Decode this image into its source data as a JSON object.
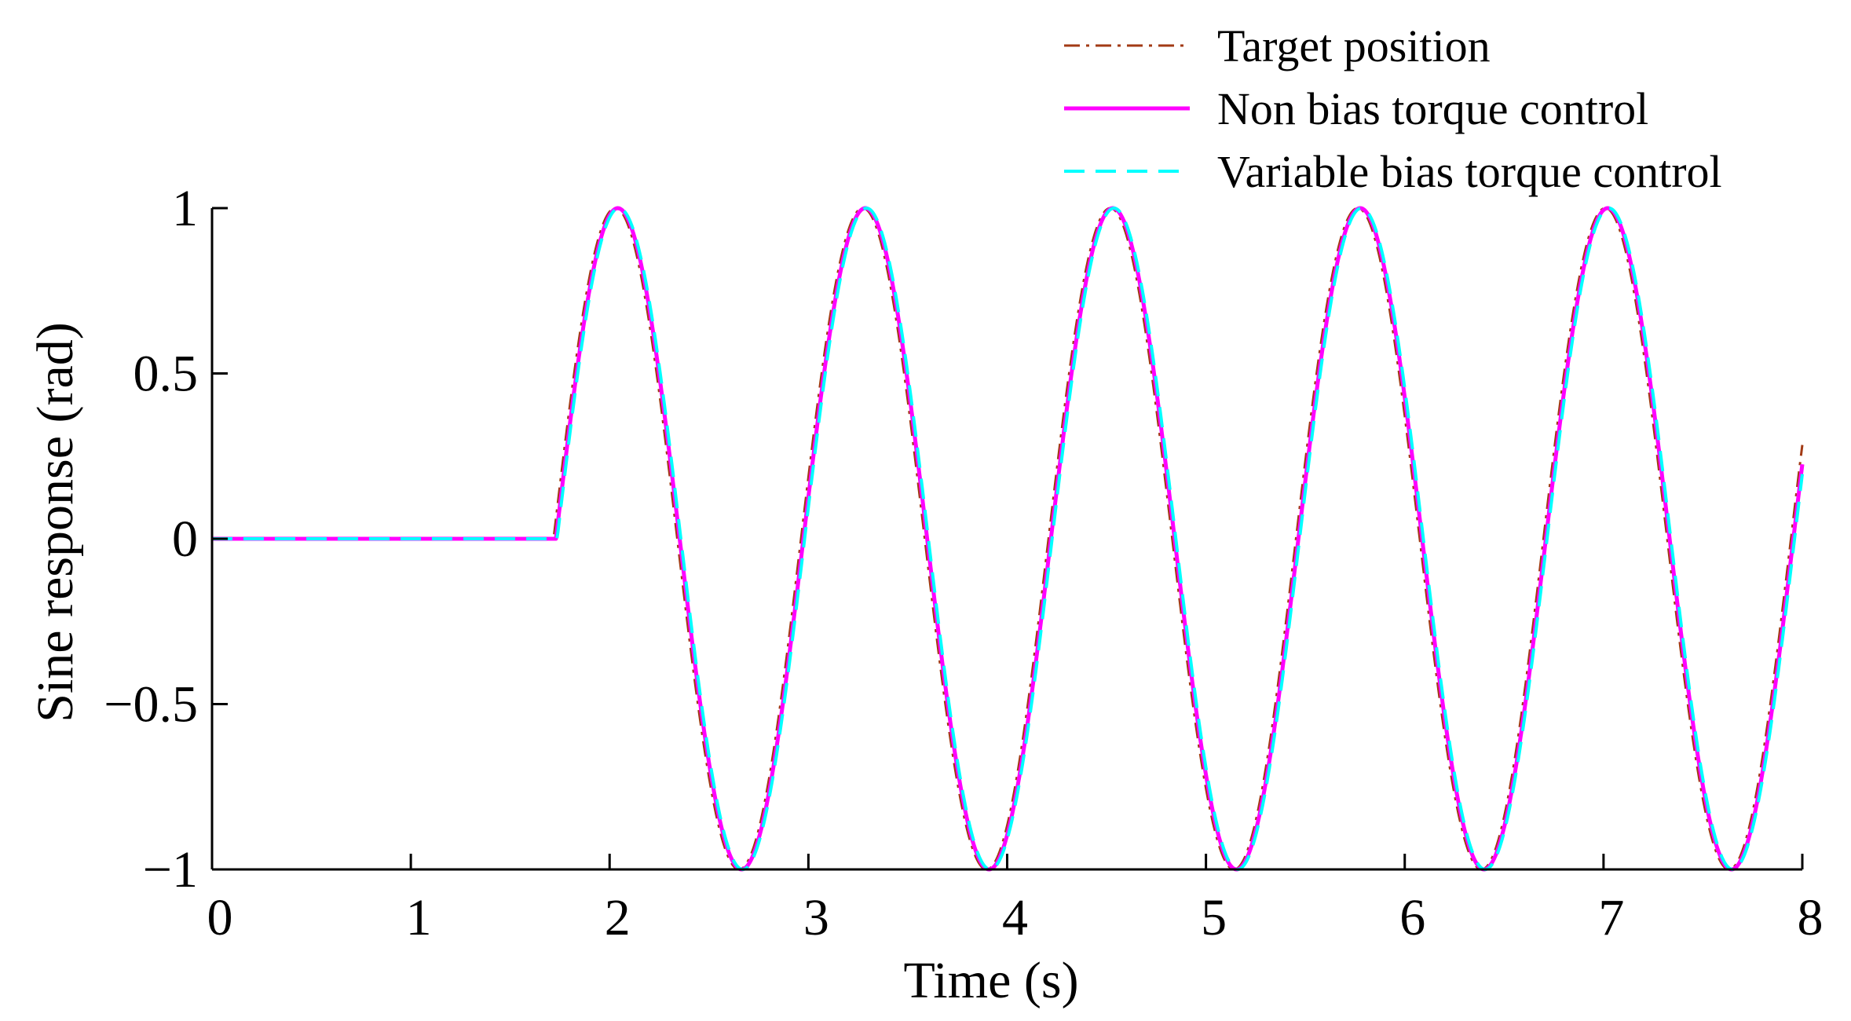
{
  "chart_data": {
    "type": "line",
    "title": "",
    "xlabel": "Time (s)",
    "ylabel": "Sine response (rad)",
    "xlim": [
      0,
      8
    ],
    "ylim": [
      -1,
      1
    ],
    "xticks": [
      "0",
      "1",
      "2",
      "3",
      "4",
      "5",
      "6",
      "7",
      "8"
    ],
    "yticks": [
      "1",
      "0.5",
      "0",
      "−0.5",
      "−1"
    ],
    "ytick_values": [
      1,
      0.5,
      0,
      -0.5,
      -1
    ],
    "grid": false,
    "legend_position": "top-right",
    "signal": {
      "start_time": 1.73,
      "period": 1.245,
      "amplitude": 1
    },
    "series": [
      {
        "name": "Target position",
        "color": "#a23a14",
        "style": "dash-dot"
      },
      {
        "name": "Non bias torque control",
        "color": "#ff00ff",
        "style": "solid"
      },
      {
        "name": "Variable bias torque control",
        "color": "#00ffff",
        "style": "dashed"
      }
    ]
  }
}
